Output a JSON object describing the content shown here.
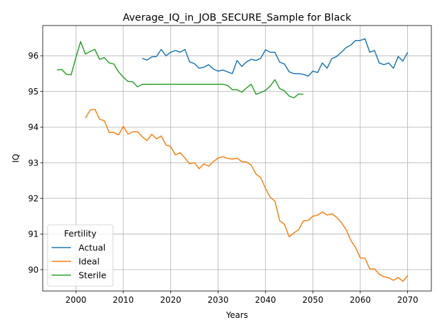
{
  "chart_data": {
    "type": "line",
    "title": "Average_IQ_in_JOB_SECURE_Sample for Black",
    "xlabel": "Years",
    "ylabel": "IQ",
    "xlim": [
      1993,
      2075
    ],
    "ylim": [
      89.4,
      96.85
    ],
    "xticks": [
      2000,
      2010,
      2020,
      2030,
      2040,
      2050,
      2060,
      2070
    ],
    "yticks": [
      90,
      91,
      92,
      93,
      94,
      95,
      96
    ],
    "grid": true,
    "legend": {
      "title": "Fertility",
      "position": "lower-left"
    },
    "series": [
      {
        "name": "Actual",
        "color": "#1f77b4",
        "x": [
          2014,
          2015,
          2016,
          2017,
          2018,
          2019,
          2020,
          2021,
          2022,
          2023,
          2024,
          2025,
          2026,
          2027,
          2028,
          2029,
          2030,
          2031,
          2032,
          2033,
          2034,
          2035,
          2036,
          2037,
          2038,
          2039,
          2040,
          2041,
          2042,
          2043,
          2044,
          2045,
          2046,
          2047,
          2048,
          2049,
          2050,
          2051,
          2052,
          2053,
          2054,
          2055,
          2056,
          2057,
          2058,
          2059,
          2060,
          2061,
          2062,
          2063,
          2064,
          2065,
          2066,
          2067,
          2068,
          2069,
          2070
        ],
        "y": [
          95.93,
          95.88,
          95.97,
          95.98,
          96.18,
          96.0,
          96.1,
          96.15,
          96.1,
          96.18,
          95.83,
          95.78,
          95.65,
          95.68,
          95.75,
          95.63,
          95.57,
          95.6,
          95.55,
          95.5,
          95.87,
          95.7,
          95.83,
          95.9,
          95.87,
          95.93,
          96.17,
          96.1,
          96.1,
          95.82,
          95.77,
          95.55,
          95.5,
          95.5,
          95.48,
          95.43,
          95.57,
          95.53,
          95.8,
          95.65,
          95.92,
          95.98,
          96.1,
          96.23,
          96.3,
          96.43,
          96.43,
          96.48,
          96.1,
          96.15,
          95.8,
          95.75,
          95.8,
          95.65,
          95.98,
          95.85,
          96.1
        ]
      },
      {
        "name": "Ideal",
        "color": "#ff7f0e",
        "x": [
          2002,
          2003,
          2004,
          2005,
          2006,
          2007,
          2008,
          2009,
          2010,
          2011,
          2012,
          2013,
          2014,
          2015,
          2016,
          2017,
          2018,
          2019,
          2020,
          2021,
          2022,
          2023,
          2024,
          2025,
          2026,
          2027,
          2028,
          2029,
          2030,
          2031,
          2032,
          2033,
          2034,
          2035,
          2036,
          2037,
          2038,
          2039,
          2040,
          2041,
          2042,
          2043,
          2044,
          2045,
          2046,
          2047,
          2048,
          2049,
          2050,
          2051,
          2052,
          2053,
          2054,
          2055,
          2056,
          2057,
          2058,
          2059,
          2060,
          2061,
          2062,
          2063,
          2064,
          2065,
          2066,
          2067,
          2068,
          2069,
          2070
        ],
        "y": [
          94.25,
          94.48,
          94.5,
          94.22,
          94.18,
          93.85,
          93.85,
          93.78,
          94.02,
          93.8,
          93.87,
          93.87,
          93.73,
          93.62,
          93.8,
          93.67,
          93.75,
          93.5,
          93.45,
          93.22,
          93.28,
          93.13,
          92.97,
          93.0,
          92.83,
          92.97,
          92.9,
          93.03,
          93.13,
          93.17,
          93.12,
          93.1,
          93.13,
          93.03,
          93.02,
          92.93,
          92.68,
          92.58,
          92.28,
          92.03,
          91.92,
          91.37,
          91.27,
          90.92,
          91.03,
          91.12,
          91.37,
          91.38,
          91.5,
          91.53,
          91.62,
          91.53,
          91.57,
          91.47,
          91.32,
          91.13,
          90.82,
          90.62,
          90.33,
          90.32,
          90.02,
          90.02,
          89.87,
          89.8,
          89.77,
          89.7,
          89.78,
          89.67,
          89.83
        ]
      },
      {
        "name": "Sterile",
        "color": "#2ca02c",
        "x": [
          1996,
          1997,
          1998,
          1999,
          2000,
          2001,
          2002,
          2003,
          2004,
          2005,
          2006,
          2007,
          2008,
          2009,
          2010,
          2011,
          2012,
          2013,
          2014,
          2015,
          2016,
          2017,
          2018,
          2019,
          2020,
          2021,
          2022,
          2023,
          2024,
          2025,
          2026,
          2027,
          2028,
          2029,
          2030,
          2031,
          2032,
          2033,
          2034,
          2035,
          2036,
          2037,
          2038,
          2039,
          2040,
          2041,
          2042,
          2043,
          2044,
          2045,
          2046,
          2047,
          2048
        ],
        "y": [
          95.6,
          95.62,
          95.48,
          95.47,
          95.95,
          96.4,
          96.05,
          96.12,
          96.18,
          95.9,
          95.95,
          95.8,
          95.77,
          95.55,
          95.4,
          95.28,
          95.27,
          95.13,
          95.2,
          95.2,
          95.2,
          95.2,
          95.2,
          95.2,
          95.2,
          95.2,
          95.2,
          95.2,
          95.2,
          95.2,
          95.2,
          95.2,
          95.2,
          95.2,
          95.2,
          95.2,
          95.17,
          95.05,
          95.05,
          94.98,
          95.1,
          95.2,
          94.92,
          94.97,
          95.03,
          95.15,
          95.33,
          95.08,
          95.02,
          94.87,
          94.82,
          94.93,
          94.92
        ]
      }
    ]
  }
}
